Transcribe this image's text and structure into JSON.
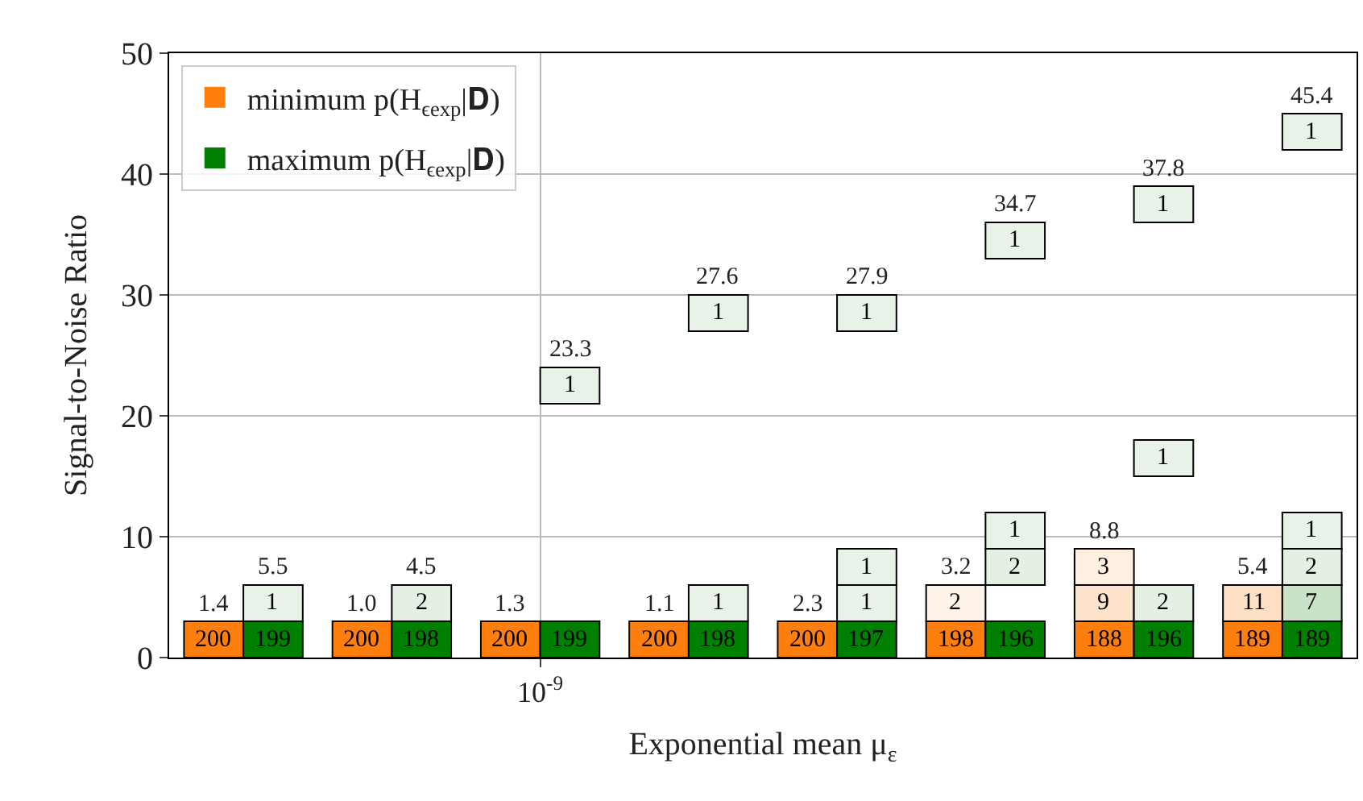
{
  "chart_data": {
    "type": "bar",
    "xlabel": "Exponential mean μ$_{ε}$",
    "ylabel": "Signal-to-Noise Ratio",
    "categories": [
      null,
      null,
      "10$^{-9}$",
      null,
      null,
      null,
      null,
      null
    ],
    "ylim": [
      0,
      50
    ],
    "yticks": [
      0,
      10,
      20,
      30,
      40,
      50
    ],
    "grid": true,
    "legend": "top left",
    "series": [
      {
        "name": "minimum p(H$_{ϵexp}$|𝐃)",
        "color": "#ff7f0e",
        "base": [
          0,
          0,
          0,
          0,
          0,
          0,
          0,
          0
        ],
        "values": [
          3,
          3,
          3,
          3,
          3,
          3,
          3,
          3
        ],
        "colors": [
          "#ff7f0e",
          "#ff7f0e",
          "#ff7f0e",
          "#ff7f0e",
          "#ff7f0e",
          "#ff7f0e",
          "#ff7f0e",
          "#ff7f0e"
        ]
      },
      {
        "base": [
          null,
          null,
          null,
          null,
          null,
          3,
          3,
          3
        ],
        "values": [
          null,
          null,
          null,
          null,
          null,
          3,
          3,
          3
        ],
        "colors": [
          "#fef3e8",
          "#fef3e8",
          "#fef3e8",
          "#fef3e8",
          "#fef3e8",
          "#fef3e8",
          "#fde3cb",
          "#fddfc3"
        ]
      },
      {
        "base": [
          null,
          null,
          null,
          null,
          null,
          null,
          6,
          null
        ],
        "values": [
          null,
          null,
          null,
          null,
          null,
          null,
          3,
          null
        ],
        "colors": [
          "#feefe1",
          "#feefe1",
          "#feefe1",
          "#feefe1",
          "#feefe1",
          "#feefe1",
          "#feefe1",
          "#feefe1"
        ]
      },
      {
        "name": "maximum p(H$_{ϵexp}$|𝐃)",
        "color": "#008000",
        "base": [
          0,
          0,
          0,
          0,
          0,
          0,
          0,
          0
        ],
        "values": [
          3,
          3,
          3,
          3,
          3,
          3,
          3,
          3
        ],
        "colors": [
          "#008000",
          "#008000",
          "#008000",
          "#008000",
          "#008000",
          "#008000",
          "#008000",
          "#008000"
        ]
      },
      {
        "base": [
          3,
          3,
          null,
          3,
          3,
          null,
          3,
          3
        ],
        "values": [
          3,
          3,
          null,
          3,
          3,
          null,
          3,
          3
        ],
        "colors": [
          "#e8f2e8",
          "#e3f0e3",
          "#e8f2e8",
          "#e8f2e8",
          "#e8f2e8",
          "#e8f2e8",
          "#e3f0e3",
          "#c8e3c8"
        ]
      },
      {
        "base": [
          null,
          null,
          null,
          null,
          6,
          6,
          null,
          6
        ],
        "values": [
          null,
          null,
          null,
          null,
          3,
          3,
          null,
          3
        ],
        "colors": [
          "#e8f2e8",
          "#e8f2e8",
          "#e8f2e8",
          "#e8f2e8",
          "#e8f2e8",
          "#e3f0e3",
          "#e8f2e8",
          "#e3f0e3"
        ]
      },
      {
        "base": [
          null,
          null,
          null,
          null,
          null,
          9,
          null,
          9
        ],
        "values": [
          null,
          null,
          null,
          null,
          null,
          3,
          null,
          3
        ],
        "colors": [
          "#e8f2e8",
          "#e8f2e8",
          "#e8f2e8",
          "#e8f2e8",
          "#e8f2e8",
          "#e8f2e8",
          "#e8f2e8",
          "#e8f2e8"
        ]
      },
      {
        "base": [
          null,
          null,
          null,
          null,
          null,
          null,
          15,
          null
        ],
        "values": [
          null,
          null,
          null,
          null,
          null,
          null,
          3,
          null
        ],
        "colors": [
          "#e8f2e8",
          "#e8f2e8",
          "#e8f2e8",
          "#e8f2e8",
          "#e8f2e8",
          "#e8f2e8",
          "#e8f2e8",
          "#e8f2e8"
        ]
      },
      {
        "base": [
          null,
          null,
          21,
          27,
          27,
          33,
          36,
          42
        ],
        "values": [
          null,
          null,
          3,
          3,
          3,
          3,
          3,
          3
        ],
        "colors": [
          "#e8f2e8",
          "#e8f2e8",
          "#e8f2e8",
          "#e8f2e8",
          "#e8f2e8",
          "#e8f2e8",
          "#e8f2e8",
          "#e8f2e8"
        ]
      }
    ],
    "annotations": [
      "200",
      "200",
      "200",
      "200",
      "200",
      "198",
      "188",
      "189",
      "2",
      "9",
      "11",
      "3",
      "199",
      "198",
      "199",
      "198",
      "197",
      "196",
      "196",
      "189",
      "1",
      "2",
      "1",
      "1",
      "2",
      "7",
      "1",
      "2",
      "2",
      "1",
      "1",
      "1",
      "1",
      "1",
      "1",
      "1",
      "1",
      "1",
      "1.4",
      "5.5",
      "1.0",
      "4.5",
      "1.3",
      "23.3",
      "1.1",
      "27.6",
      "2.3",
      "27.9",
      "3.2",
      "34.7",
      "8.8",
      "37.8",
      "5.4",
      "45.4"
    ]
  }
}
